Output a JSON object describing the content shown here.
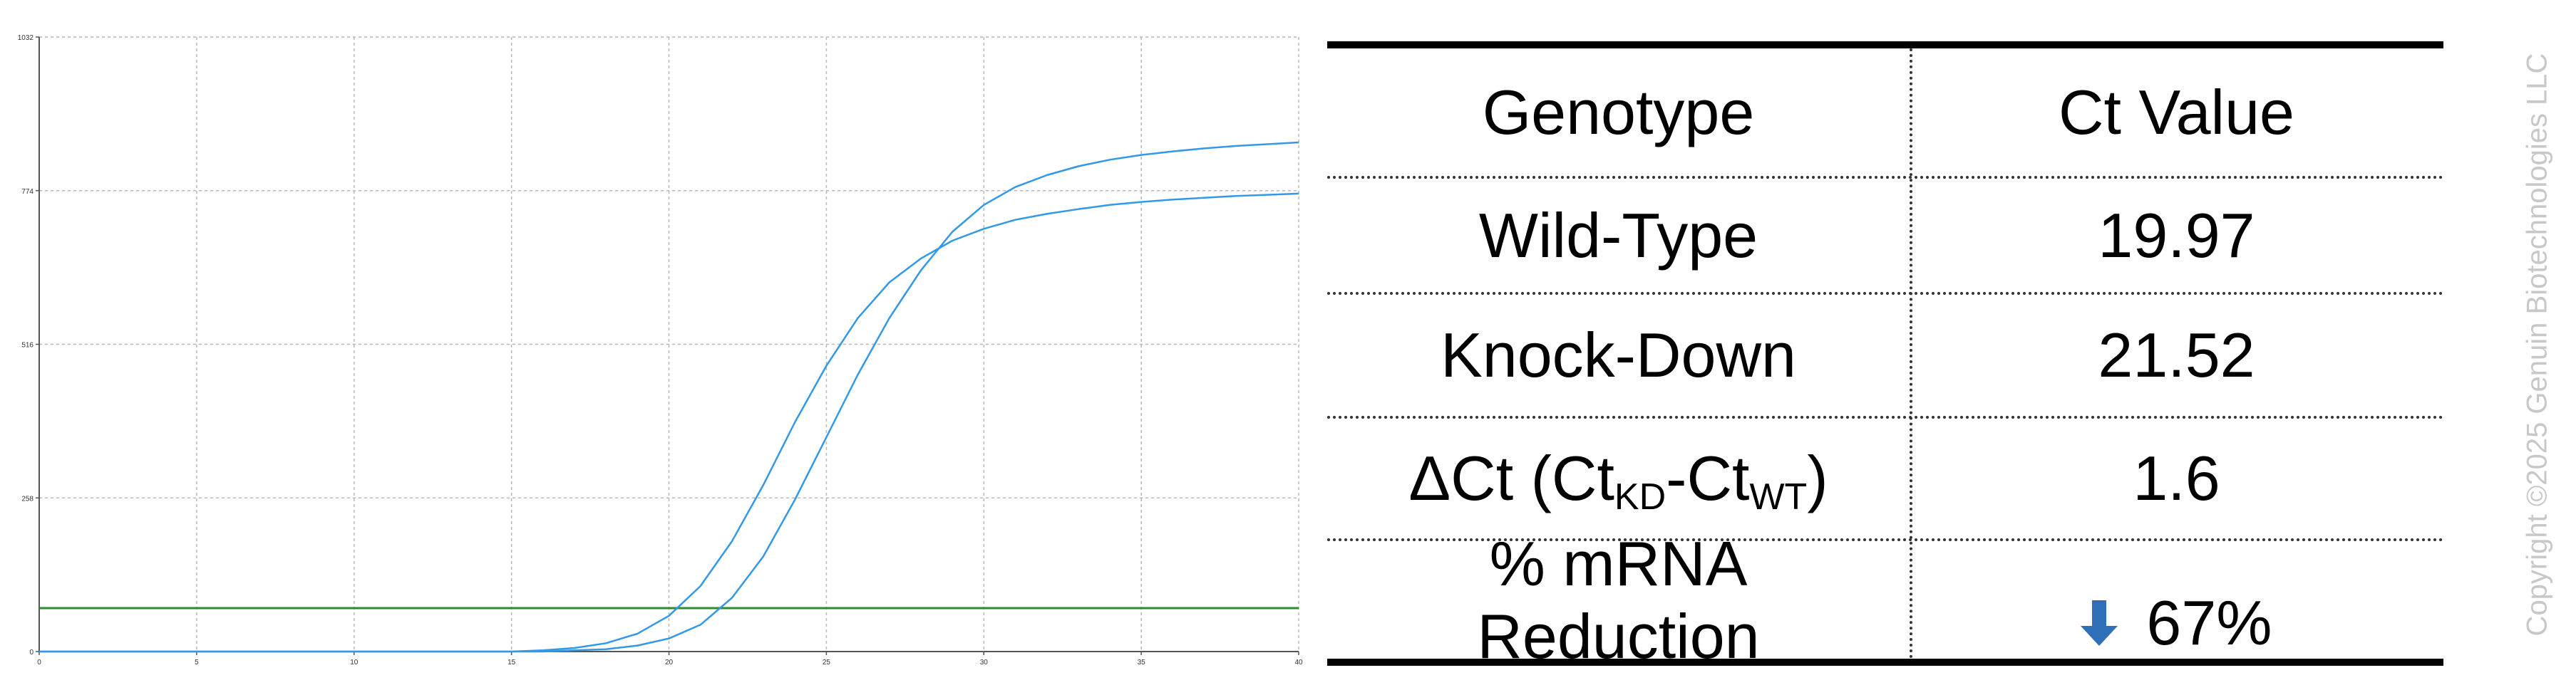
{
  "chart_data": {
    "type": "line",
    "title": "",
    "xlabel": "",
    "ylabel": "",
    "x_ticks": [
      0,
      5,
      10,
      15,
      20,
      25,
      30,
      35,
      40
    ],
    "y_ticks": [
      0,
      258,
      516,
      774,
      1032
    ],
    "y_tick_labels": [
      "0",
      "258",
      "516",
      "774",
      "1032"
    ],
    "xlim": [
      0,
      40
    ],
    "ylim": [
      0,
      1032
    ],
    "grid": true,
    "threshold": 73,
    "series": [
      {
        "color": "#3399e6",
        "x": [
          0,
          15,
          16,
          17,
          18,
          19,
          20,
          21,
          22,
          23,
          24,
          25,
          26,
          27,
          28,
          29,
          30,
          31,
          32,
          33,
          34,
          35,
          36,
          37,
          38,
          39,
          40
        ],
        "values": [
          0,
          0,
          2,
          6,
          14,
          30,
          60,
          110,
          185,
          280,
          385,
          480,
          560,
          620,
          660,
          690,
          710,
          725,
          735,
          743,
          750,
          755,
          759,
          762,
          765,
          767,
          769
        ]
      },
      {
        "color": "#3399e6",
        "x": [
          0,
          16,
          17,
          18,
          19,
          20,
          21,
          22,
          23,
          24,
          25,
          26,
          27,
          28,
          29,
          30,
          31,
          32,
          33,
          34,
          35,
          36,
          37,
          38,
          39,
          40
        ],
        "values": [
          0,
          0,
          2,
          4,
          10,
          22,
          45,
          90,
          160,
          255,
          360,
          465,
          560,
          640,
          705,
          750,
          780,
          800,
          815,
          826,
          834,
          840,
          845,
          849,
          852,
          855
        ]
      }
    ],
    "colors": {
      "curve": "#3399e6",
      "threshold": "#2e8b2e",
      "grid": "#b8b8b8"
    }
  },
  "table": {
    "headers": [
      "Genotype",
      "Ct Value"
    ],
    "rows": [
      {
        "label": "Wild-Type",
        "value": "19.97"
      },
      {
        "label": "Knock-Down",
        "value": "21.52"
      },
      {
        "label_main": "ΔCt (Ct",
        "sub_kd": "KD",
        "label_mid": "-Ct",
        "sub_wt": "WT",
        "label_end": ")",
        "value": "1.6"
      },
      {
        "label_line1": "% mRNA",
        "label_line2": "Reduction",
        "value": "67%",
        "icon": "down-arrow-icon",
        "icon_color": "#2f6fb7"
      }
    ]
  },
  "watermark": "Copyright ©2025 Genuin Biotechnologies LLC"
}
